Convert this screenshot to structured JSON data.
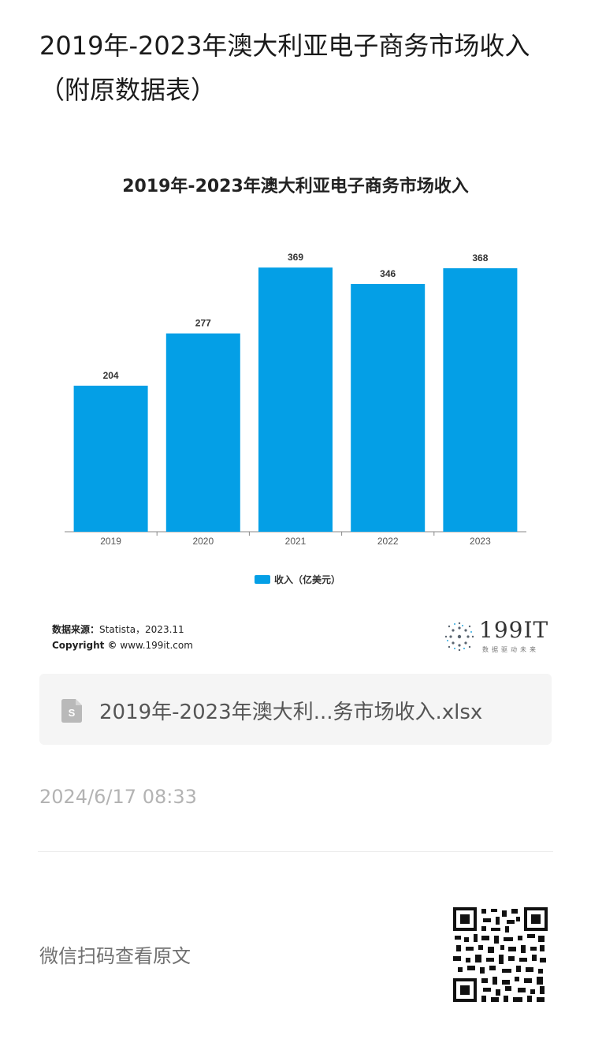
{
  "article": {
    "title": "2019年-2023年澳大利亚电子商务市场收入（附原数据表）"
  },
  "chart_data": {
    "type": "bar",
    "title": "2019年-2023年澳大利亚电子商务市场收入",
    "categories": [
      "2019",
      "2020",
      "2021",
      "2022",
      "2023"
    ],
    "series": [
      {
        "name": "收入（亿美元）",
        "values": [
          204,
          277,
          369,
          346,
          368
        ]
      }
    ],
    "ylim": [
      0,
      400
    ],
    "grid": false,
    "legend": "bottom-center",
    "bar_color": "#049fe6",
    "data_labels": true
  },
  "source": {
    "label": "数据来源：",
    "value": "Statista，2023.11",
    "copyright_label": "Copyright ©",
    "copyright_value": "www.199it.com"
  },
  "logo": {
    "text": "199IT",
    "subtext": "数据驱动未来"
  },
  "file": {
    "icon": "spreadsheet-file-icon",
    "name": "2019年-2023年澳大利...务市场收入.xlsx"
  },
  "meta": {
    "timestamp": "2024/6/17 08:33"
  },
  "footer": {
    "scan_text": "微信扫码查看原文",
    "qr_icon": "qr-code-icon"
  }
}
